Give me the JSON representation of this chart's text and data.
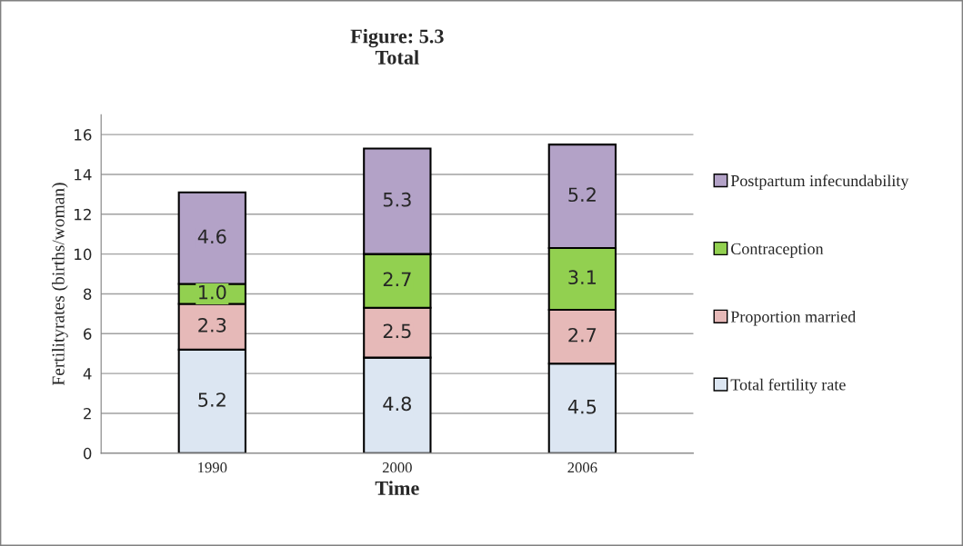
{
  "chart_data": {
    "type": "bar",
    "stacked": true,
    "title": "Figure: 5.3\nTotal",
    "xlabel": "Time",
    "ylabel": "Fertilityrates (births/woman)",
    "categories": [
      "1990",
      "2000",
      "2006"
    ],
    "series": [
      {
        "name": "Total fertility rate",
        "color": "#dce6f2",
        "values": [
          5.2,
          4.8,
          4.5
        ],
        "value_labels": [
          "5.2",
          "4.8",
          "4.5"
        ]
      },
      {
        "name": "Proportion married",
        "color": "#e6b9b8",
        "values": [
          2.3,
          2.5,
          2.7
        ],
        "value_labels": [
          "2.3",
          "2.5",
          "2.7"
        ]
      },
      {
        "name": "Contraception",
        "color": "#92d050",
        "values": [
          1.0,
          2.7,
          3.1
        ],
        "value_labels": [
          "1.0",
          "2.7",
          "3.1"
        ]
      },
      {
        "name": "Postpartum infecundability",
        "color": "#b3a2c7",
        "values": [
          4.6,
          5.3,
          5.2
        ],
        "value_labels": [
          "4.6",
          "5.3",
          "5.2"
        ]
      }
    ],
    "ylim": [
      0,
      17
    ],
    "yticks": [
      0,
      2,
      4,
      6,
      8,
      10,
      12,
      14,
      16
    ],
    "grid": "y",
    "legend": "right"
  }
}
